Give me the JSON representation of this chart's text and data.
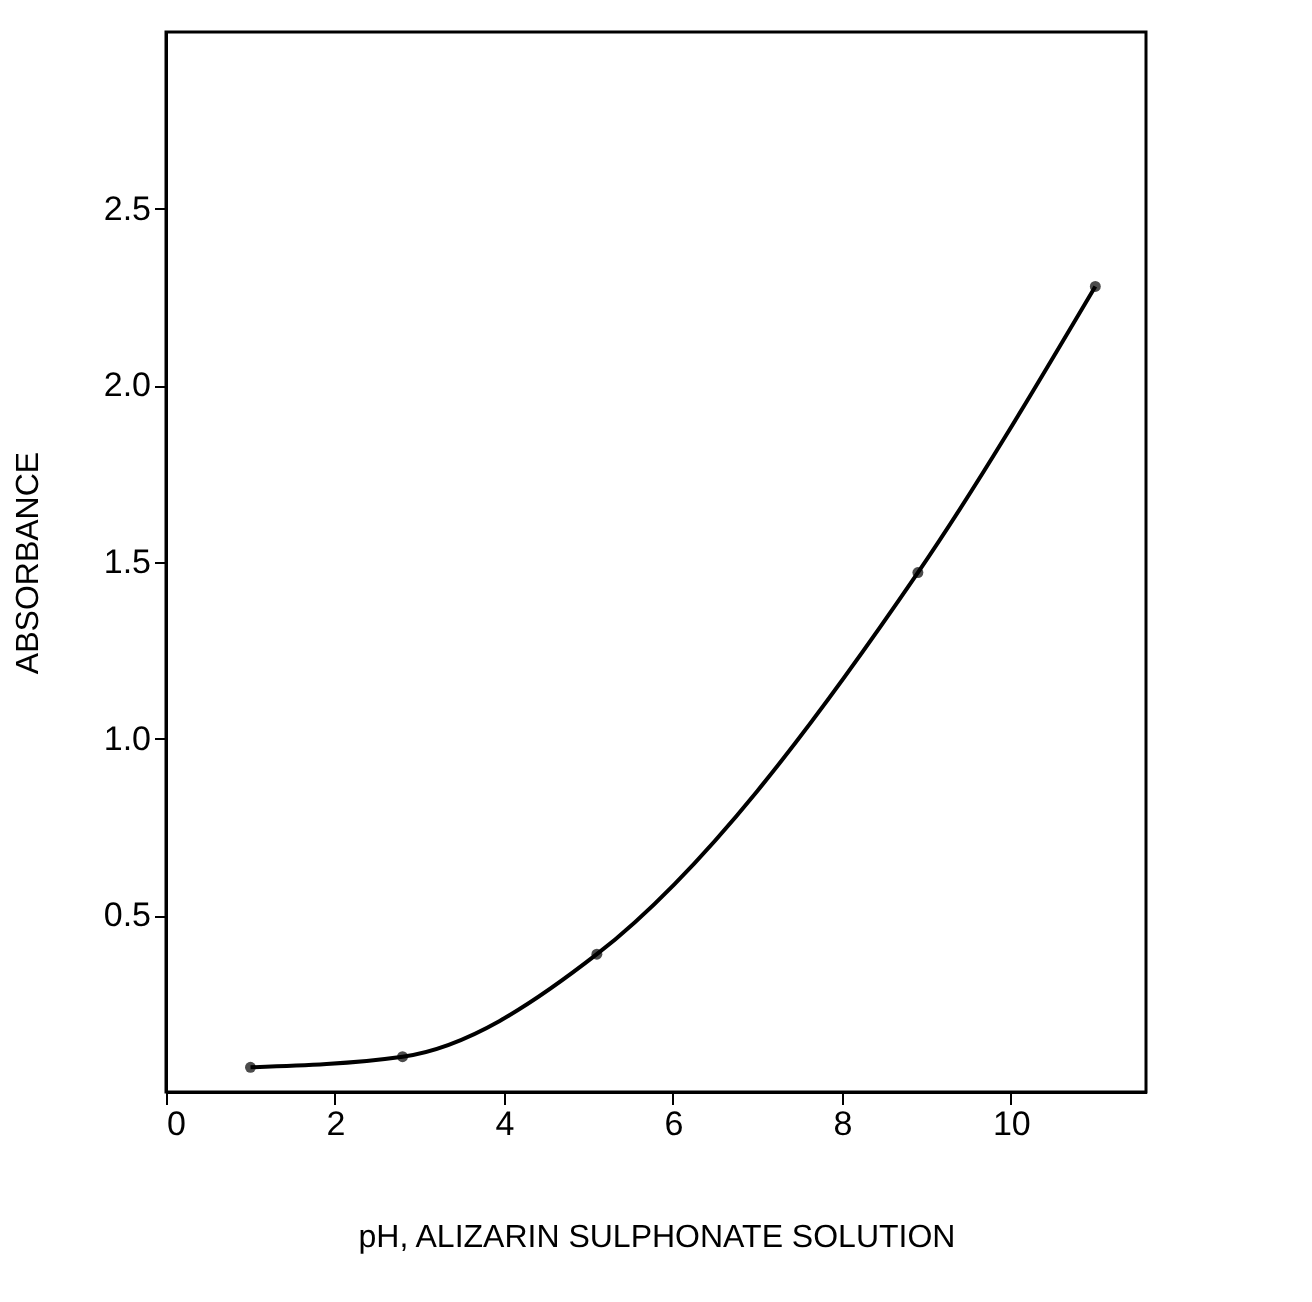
{
  "chart_data": {
    "type": "line",
    "xlabel": "pH, ALIZARIN SULPHONATE SOLUTION",
    "ylabel": "ABSORBANCE",
    "x": [
      1.0,
      2.8,
      5.1,
      8.9,
      11.0
    ],
    "series": [
      {
        "color": "#000000",
        "values": [
          0.07,
          0.1,
          0.39,
          1.47,
          2.28
        ]
      }
    ],
    "xlim": [
      0,
      11.6
    ],
    "ylim": [
      0,
      3.0
    ],
    "xticks": [
      0,
      2,
      4,
      6,
      8,
      10
    ],
    "yticks": [
      0.5,
      {
        "value": 1,
        "label": "1.0"
      },
      1.5,
      {
        "value": 2,
        "label": "2.0"
      },
      2.5
    ],
    "marker": "circle",
    "line_style": "solid",
    "grid": false,
    "legend": false
  }
}
